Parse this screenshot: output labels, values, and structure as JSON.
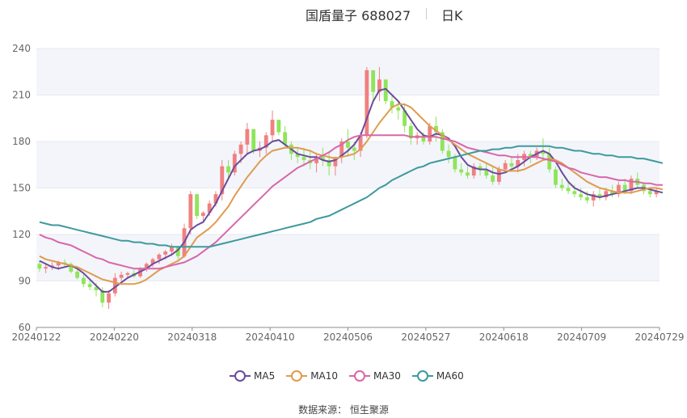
{
  "header": {
    "title": "国盾量子 688027",
    "period": "日K"
  },
  "source": "数据来源： 恒生聚源",
  "colors": {
    "up": "#f08080",
    "down": "#8ee55a",
    "ma5": "#6a4c9c",
    "ma10": "#e09b4f",
    "ma30": "#d867a8",
    "ma60": "#3e9a9c",
    "grid_band": "#f3f5fb",
    "axis": "#8c8c8c"
  },
  "chart_data": {
    "type": "candlestick",
    "title": "国盾量子 688027",
    "ylim": [
      60,
      240
    ],
    "yticks": [
      60,
      90,
      120,
      150,
      180,
      210,
      240
    ],
    "x_ticks": [
      "20240122",
      "20240220",
      "20240318",
      "20240410",
      "20240506",
      "20240527",
      "20240618",
      "20240709",
      "20240729"
    ],
    "legend_position": "bottom",
    "legend": [
      "MA5",
      "MA10",
      "MA30",
      "MA60"
    ],
    "candles_ohlc": [
      [
        101,
        103,
        96,
        98
      ],
      [
        98,
        101,
        95,
        99
      ],
      [
        99,
        102,
        97,
        100
      ],
      [
        100,
        103,
        97,
        102
      ],
      [
        102,
        104,
        99,
        101
      ],
      [
        101,
        102,
        95,
        96
      ],
      [
        96,
        98,
        91,
        92
      ],
      [
        92,
        94,
        86,
        88
      ],
      [
        88,
        91,
        84,
        86
      ],
      [
        86,
        89,
        80,
        84
      ],
      [
        84,
        86,
        73,
        76
      ],
      [
        76,
        84,
        72,
        82
      ],
      [
        82,
        95,
        80,
        92
      ],
      [
        92,
        96,
        90,
        94
      ],
      [
        94,
        96,
        92,
        95
      ],
      [
        95,
        97,
        92,
        93
      ],
      [
        93,
        99,
        92,
        98
      ],
      [
        98,
        102,
        96,
        101
      ],
      [
        101,
        105,
        99,
        104
      ],
      [
        104,
        108,
        101,
        107
      ],
      [
        107,
        110,
        104,
        109
      ],
      [
        109,
        114,
        106,
        112
      ],
      [
        112,
        112,
        104,
        106
      ],
      [
        106,
        127,
        105,
        124
      ],
      [
        124,
        148,
        120,
        146
      ],
      [
        146,
        146,
        130,
        132
      ],
      [
        132,
        135,
        128,
        134
      ],
      [
        134,
        142,
        132,
        140
      ],
      [
        140,
        148,
        138,
        146
      ],
      [
        146,
        168,
        142,
        164
      ],
      [
        164,
        168,
        156,
        160
      ],
      [
        160,
        174,
        158,
        172
      ],
      [
        172,
        180,
        166,
        178
      ],
      [
        178,
        192,
        172,
        188
      ],
      [
        188,
        186,
        172,
        174
      ],
      [
        174,
        180,
        170,
        176
      ],
      [
        176,
        186,
        172,
        184
      ],
      [
        184,
        200,
        180,
        194
      ],
      [
        194,
        194,
        184,
        186
      ],
      [
        186,
        190,
        176,
        178
      ],
      [
        178,
        180,
        168,
        172
      ],
      [
        172,
        176,
        166,
        170
      ],
      [
        170,
        176,
        164,
        168
      ],
      [
        168,
        174,
        162,
        166
      ],
      [
        166,
        172,
        160,
        170
      ],
      [
        170,
        176,
        164,
        168
      ],
      [
        168,
        174,
        158,
        164
      ],
      [
        164,
        170,
        158,
        170
      ],
      [
        170,
        182,
        166,
        180
      ],
      [
        180,
        188,
        170,
        176
      ],
      [
        176,
        180,
        168,
        174
      ],
      [
        174,
        186,
        170,
        184
      ],
      [
        184,
        228,
        182,
        226
      ],
      [
        226,
        222,
        206,
        212
      ],
      [
        212,
        228,
        206,
        220
      ],
      [
        220,
        216,
        204,
        206
      ],
      [
        206,
        210,
        198,
        202
      ],
      [
        202,
        206,
        194,
        200
      ],
      [
        200,
        204,
        186,
        190
      ],
      [
        190,
        192,
        178,
        182
      ],
      [
        182,
        186,
        178,
        184
      ],
      [
        184,
        186,
        178,
        180
      ],
      [
        180,
        192,
        178,
        190
      ],
      [
        190,
        196,
        180,
        186
      ],
      [
        186,
        188,
        172,
        174
      ],
      [
        174,
        178,
        166,
        170
      ],
      [
        170,
        172,
        160,
        162
      ],
      [
        162,
        166,
        158,
        160
      ],
      [
        160,
        164,
        156,
        158
      ],
      [
        158,
        166,
        156,
        164
      ],
      [
        164,
        166,
        158,
        162
      ],
      [
        162,
        166,
        156,
        158
      ],
      [
        158,
        164,
        152,
        154
      ],
      [
        154,
        164,
        152,
        162
      ],
      [
        162,
        168,
        160,
        166
      ],
      [
        166,
        170,
        162,
        164
      ],
      [
        164,
        172,
        160,
        168
      ],
      [
        168,
        174,
        164,
        172
      ],
      [
        172,
        174,
        166,
        170
      ],
      [
        170,
        176,
        168,
        174
      ],
      [
        174,
        182,
        168,
        172
      ],
      [
        172,
        176,
        160,
        162
      ],
      [
        162,
        164,
        150,
        152
      ],
      [
        152,
        156,
        148,
        150
      ],
      [
        150,
        154,
        146,
        148
      ],
      [
        148,
        152,
        144,
        146
      ],
      [
        146,
        150,
        142,
        144
      ],
      [
        144,
        148,
        140,
        142
      ],
      [
        142,
        148,
        138,
        146
      ],
      [
        146,
        150,
        142,
        144
      ],
      [
        144,
        150,
        142,
        148
      ],
      [
        148,
        152,
        144,
        146
      ],
      [
        146,
        154,
        144,
        152
      ],
      [
        152,
        156,
        146,
        148
      ],
      [
        148,
        158,
        146,
        156
      ],
      [
        156,
        160,
        150,
        152
      ],
      [
        152,
        154,
        146,
        148
      ],
      [
        148,
        150,
        144,
        146
      ],
      [
        146,
        150,
        144,
        148
      ]
    ],
    "series": [
      {
        "name": "MA5",
        "values": [
          103,
          101,
          99,
          98,
          99,
          100,
          98,
          95,
          91,
          87,
          83,
          83,
          86,
          89,
          92,
          94,
          96,
          98,
          101,
          103,
          105,
          107,
          110,
          115,
          123,
          126,
          128,
          134,
          140,
          148,
          156,
          164,
          168,
          172,
          174,
          175,
          177,
          180,
          181,
          178,
          175,
          172,
          171,
          170,
          170,
          168,
          167,
          168,
          171,
          174,
          178,
          184,
          195,
          206,
          213,
          214,
          210,
          206,
          200,
          194,
          188,
          184,
          183,
          185,
          184,
          182,
          177,
          170,
          165,
          163,
          162,
          162,
          160,
          159,
          160,
          162,
          164,
          167,
          170,
          172,
          174,
          172,
          167,
          160,
          154,
          150,
          148,
          146,
          145,
          144,
          145,
          146,
          147,
          148,
          149,
          150,
          150,
          149,
          148,
          147
        ]
      },
      {
        "name": "MA10",
        "values": [
          106,
          104,
          103,
          102,
          101,
          100,
          99,
          97,
          95,
          93,
          91,
          90,
          89,
          88,
          88,
          88,
          89,
          91,
          94,
          97,
          99,
          101,
          103,
          106,
          112,
          118,
          121,
          124,
          128,
          133,
          138,
          145,
          151,
          157,
          162,
          167,
          171,
          174,
          175,
          176,
          176,
          176,
          175,
          174,
          172,
          171,
          170,
          169,
          170,
          171,
          172,
          175,
          180,
          186,
          192,
          197,
          202,
          204,
          204,
          202,
          198,
          194,
          190,
          187,
          184,
          181,
          178,
          175,
          172,
          170,
          168,
          166,
          164,
          162,
          161,
          161,
          161,
          162,
          164,
          166,
          168,
          169,
          168,
          166,
          163,
          160,
          157,
          154,
          152,
          150,
          149,
          148,
          147,
          147,
          147,
          148,
          149,
          150,
          150,
          149
        ]
      },
      {
        "name": "MA30",
        "values": [
          120,
          118,
          117,
          115,
          114,
          113,
          111,
          109,
          107,
          105,
          104,
          102,
          101,
          100,
          99,
          98,
          98,
          98,
          98,
          98,
          99,
          100,
          101,
          102,
          104,
          106,
          109,
          112,
          115,
          119,
          123,
          127,
          131,
          135,
          139,
          143,
          147,
          151,
          154,
          157,
          160,
          163,
          165,
          167,
          169,
          171,
          173,
          176,
          178,
          181,
          183,
          184,
          184,
          184,
          184,
          184,
          184,
          184,
          184,
          183,
          183,
          183,
          183,
          183,
          182,
          181,
          180,
          178,
          176,
          175,
          174,
          173,
          172,
          171,
          171,
          170,
          170,
          170,
          170,
          170,
          169,
          168,
          167,
          165,
          163,
          162,
          160,
          159,
          158,
          157,
          157,
          156,
          155,
          155,
          154,
          154,
          153,
          153,
          152,
          152
        ]
      },
      {
        "name": "MA60",
        "values": [
          128,
          127,
          126,
          126,
          125,
          124,
          123,
          122,
          121,
          120,
          119,
          118,
          117,
          116,
          116,
          115,
          115,
          114,
          114,
          113,
          113,
          112,
          112,
          112,
          112,
          112,
          112,
          112,
          113,
          114,
          115,
          116,
          117,
          118,
          119,
          120,
          121,
          122,
          123,
          124,
          125,
          126,
          127,
          128,
          130,
          131,
          132,
          134,
          136,
          138,
          140,
          142,
          144,
          147,
          150,
          152,
          155,
          157,
          159,
          161,
          163,
          164,
          166,
          167,
          168,
          169,
          170,
          171,
          172,
          173,
          174,
          174,
          175,
          175,
          176,
          176,
          177,
          177,
          177,
          177,
          177,
          177,
          176,
          176,
          175,
          174,
          174,
          173,
          172,
          172,
          171,
          171,
          170,
          170,
          170,
          169,
          169,
          168,
          167,
          166
        ]
      }
    ]
  }
}
